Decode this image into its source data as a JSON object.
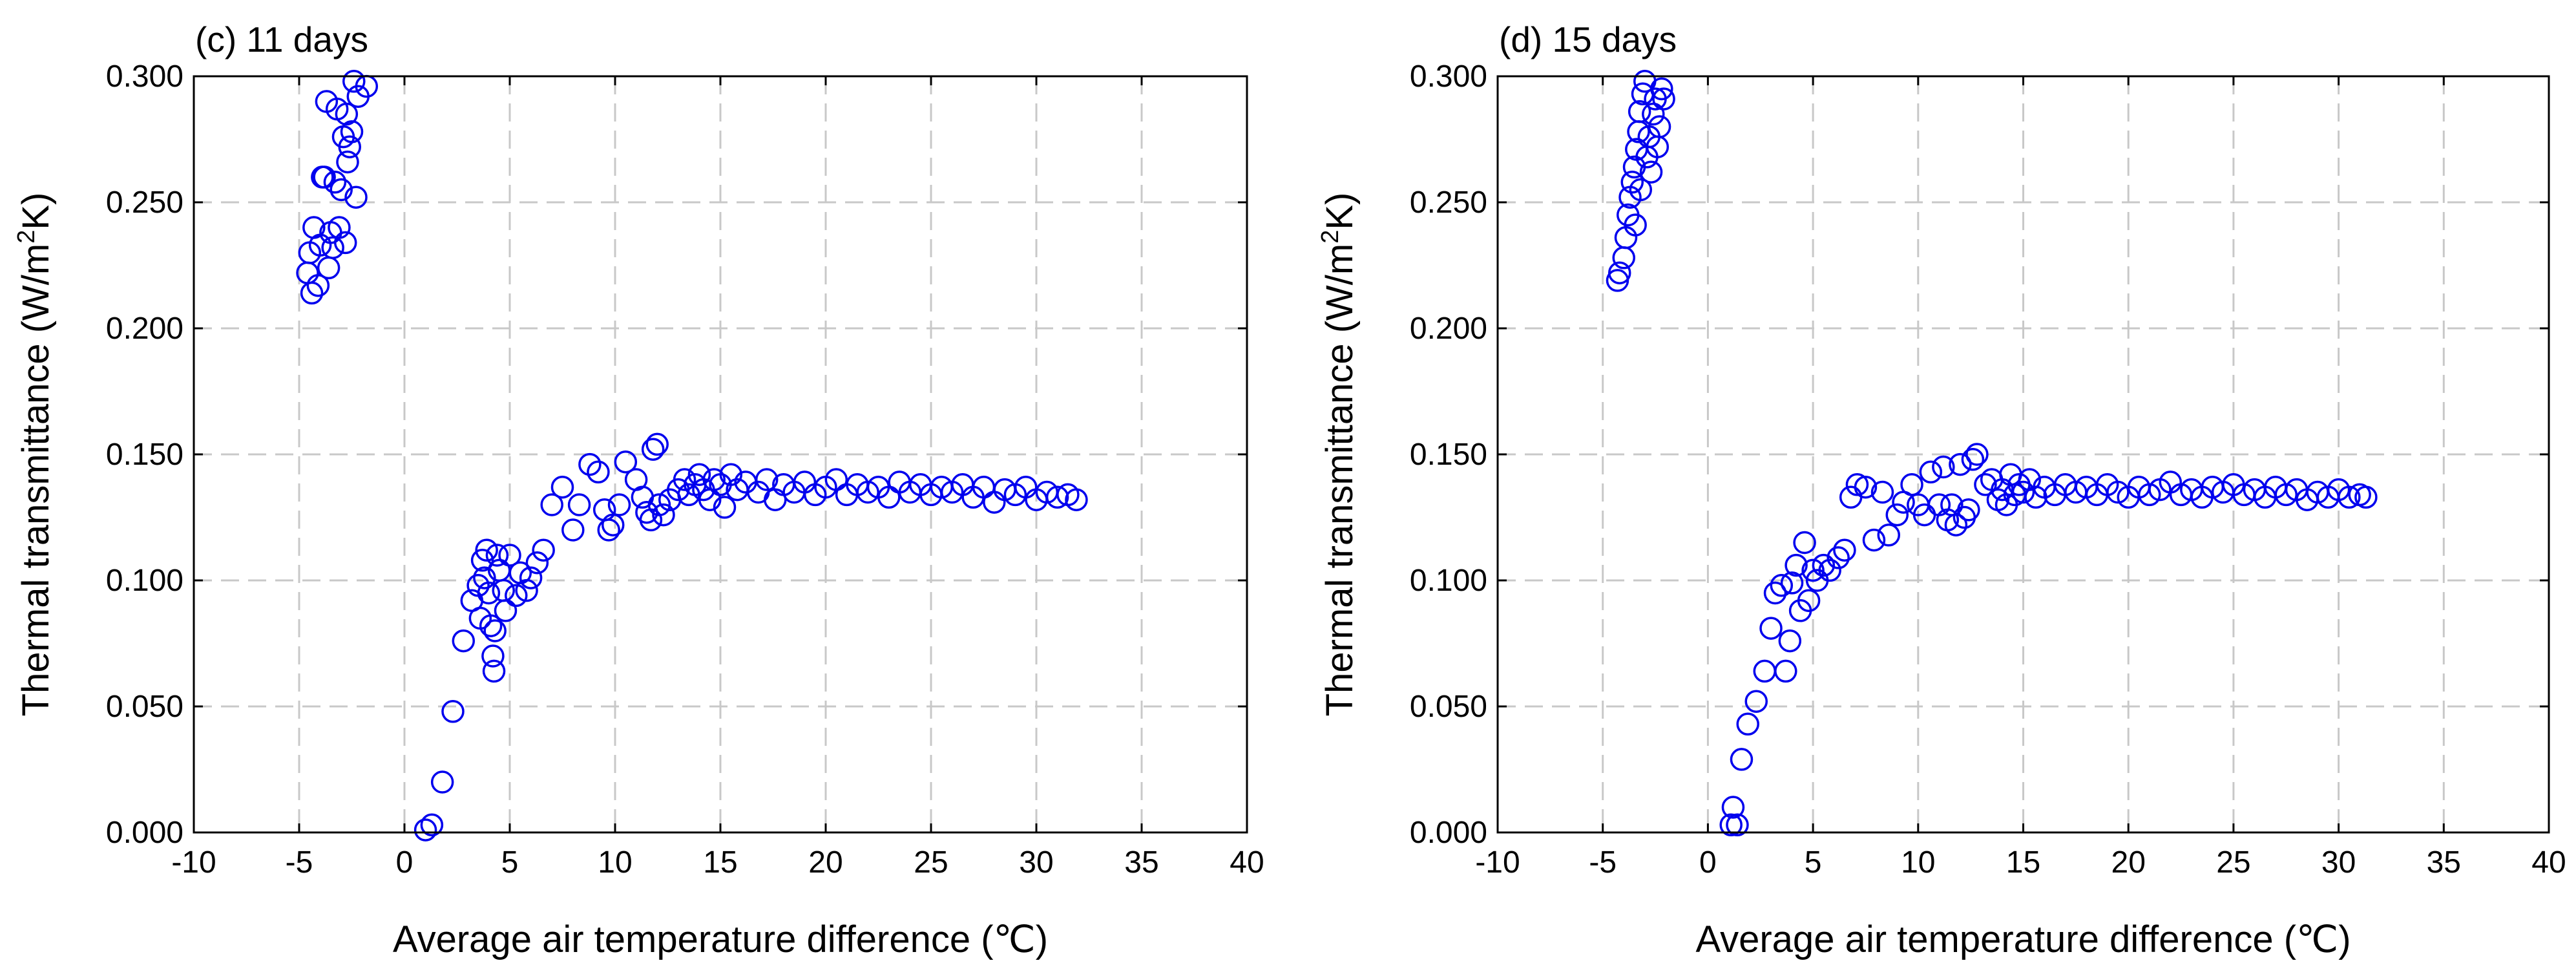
{
  "chart_data": [
    {
      "type": "scatter",
      "title": "(c) 11 days",
      "xlabel": "Average air temperature difference (℃)",
      "ylabel": "Thermal transmittance (W/m²K)",
      "xlim": [
        -10,
        40
      ],
      "ylim": [
        0,
        0.3
      ],
      "xticks": [
        "-10",
        "-5",
        "0",
        "5",
        "10",
        "15",
        "20",
        "25",
        "30",
        "35",
        "40"
      ],
      "yticks": [
        "0.000",
        "0.050",
        "0.100",
        "0.150",
        "0.200",
        "0.250",
        "0.300"
      ],
      "grid": true,
      "marker": "open-circle",
      "color": "#0000ee",
      "series": [
        {
          "name": "11 days",
          "points": [
            [
              -4.6,
              0.222
            ],
            [
              -4.5,
              0.23
            ],
            [
              -4.4,
              0.214
            ],
            [
              -4.3,
              0.24
            ],
            [
              -4.1,
              0.217
            ],
            [
              -4.0,
              0.233
            ],
            [
              -3.9,
              0.26
            ],
            [
              -3.8,
              0.26
            ],
            [
              -3.7,
              0.29
            ],
            [
              -3.6,
              0.224
            ],
            [
              -3.5,
              0.238
            ],
            [
              -3.4,
              0.232
            ],
            [
              -3.3,
              0.258
            ],
            [
              -3.2,
              0.287
            ],
            [
              -3.1,
              0.24
            ],
            [
              -3.0,
              0.255
            ],
            [
              -2.9,
              0.276
            ],
            [
              -2.8,
              0.234
            ],
            [
              -2.75,
              0.285
            ],
            [
              -2.7,
              0.266
            ],
            [
              -2.6,
              0.272
            ],
            [
              -2.5,
              0.278
            ],
            [
              -2.4,
              0.298
            ],
            [
              -2.3,
              0.252
            ],
            [
              -2.2,
              0.292
            ],
            [
              -1.8,
              0.296
            ],
            [
              1.0,
              0.001
            ],
            [
              1.3,
              0.003
            ],
            [
              1.8,
              0.02
            ],
            [
              2.3,
              0.048
            ],
            [
              2.8,
              0.076
            ],
            [
              3.2,
              0.092
            ],
            [
              3.5,
              0.098
            ],
            [
              3.6,
              0.085
            ],
            [
              3.7,
              0.108
            ],
            [
              3.8,
              0.101
            ],
            [
              3.9,
              0.112
            ],
            [
              4.0,
              0.095
            ],
            [
              4.1,
              0.082
            ],
            [
              4.2,
              0.07
            ],
            [
              4.25,
              0.064
            ],
            [
              4.3,
              0.08
            ],
            [
              4.4,
              0.11
            ],
            [
              4.5,
              0.104
            ],
            [
              4.7,
              0.096
            ],
            [
              4.8,
              0.088
            ],
            [
              5.0,
              0.11
            ],
            [
              5.3,
              0.094
            ],
            [
              5.5,
              0.103
            ],
            [
              5.8,
              0.096
            ],
            [
              6.0,
              0.101
            ],
            [
              6.3,
              0.107
            ],
            [
              6.6,
              0.112
            ],
            [
              7.0,
              0.13
            ],
            [
              7.5,
              0.137
            ],
            [
              8.0,
              0.12
            ],
            [
              8.3,
              0.13
            ],
            [
              8.8,
              0.146
            ],
            [
              9.2,
              0.143
            ],
            [
              9.5,
              0.128
            ],
            [
              9.7,
              0.12
            ],
            [
              9.9,
              0.122
            ],
            [
              10.2,
              0.13
            ],
            [
              10.5,
              0.147
            ],
            [
              11.0,
              0.14
            ],
            [
              11.3,
              0.133
            ],
            [
              11.5,
              0.127
            ],
            [
              11.7,
              0.124
            ],
            [
              11.8,
              0.152
            ],
            [
              12.0,
              0.154
            ],
            [
              12.1,
              0.13
            ],
            [
              12.3,
              0.126
            ],
            [
              12.6,
              0.132
            ],
            [
              13.0,
              0.136
            ],
            [
              13.3,
              0.14
            ],
            [
              13.5,
              0.134
            ],
            [
              13.8,
              0.138
            ],
            [
              14.0,
              0.142
            ],
            [
              14.2,
              0.136
            ],
            [
              14.5,
              0.132
            ],
            [
              14.7,
              0.14
            ],
            [
              15.0,
              0.138
            ],
            [
              15.2,
              0.129
            ],
            [
              15.5,
              0.142
            ],
            [
              15.8,
              0.136
            ],
            [
              16.2,
              0.139
            ],
            [
              16.8,
              0.135
            ],
            [
              17.2,
              0.14
            ],
            [
              17.6,
              0.132
            ],
            [
              18.0,
              0.138
            ],
            [
              18.5,
              0.135
            ],
            [
              19.0,
              0.139
            ],
            [
              19.5,
              0.134
            ],
            [
              20.0,
              0.137
            ],
            [
              20.5,
              0.14
            ],
            [
              21.0,
              0.134
            ],
            [
              21.5,
              0.138
            ],
            [
              22.0,
              0.135
            ],
            [
              22.5,
              0.137
            ],
            [
              23.0,
              0.133
            ],
            [
              23.5,
              0.139
            ],
            [
              24.0,
              0.135
            ],
            [
              24.5,
              0.138
            ],
            [
              25.0,
              0.134
            ],
            [
              25.5,
              0.137
            ],
            [
              26.0,
              0.135
            ],
            [
              26.5,
              0.138
            ],
            [
              27.0,
              0.133
            ],
            [
              27.5,
              0.137
            ],
            [
              28.0,
              0.131
            ],
            [
              28.5,
              0.136
            ],
            [
              29.0,
              0.134
            ],
            [
              29.5,
              0.137
            ],
            [
              30.0,
              0.132
            ],
            [
              30.5,
              0.135
            ],
            [
              31.0,
              0.133
            ],
            [
              31.5,
              0.134
            ],
            [
              31.9,
              0.132
            ]
          ]
        }
      ]
    },
    {
      "type": "scatter",
      "title": "(d) 15 days",
      "xlabel": "Average air temperature difference (℃)",
      "ylabel": "Thermal transmittance (W/m²K)",
      "xlim": [
        -10,
        40
      ],
      "ylim": [
        0,
        0.3
      ],
      "xticks": [
        "-10",
        "-5",
        "0",
        "5",
        "10",
        "15",
        "20",
        "25",
        "30",
        "35",
        "40"
      ],
      "yticks": [
        "0.000",
        "0.050",
        "0.100",
        "0.150",
        "0.200",
        "0.250",
        "0.300"
      ],
      "grid": true,
      "marker": "open-circle",
      "color": "#0000ee",
      "series": [
        {
          "name": "15 days",
          "points": [
            [
              -4.3,
              0.219
            ],
            [
              -4.2,
              0.222
            ],
            [
              -4.0,
              0.228
            ],
            [
              -3.9,
              0.236
            ],
            [
              -3.8,
              0.245
            ],
            [
              -3.7,
              0.252
            ],
            [
              -3.6,
              0.258
            ],
            [
              -3.5,
              0.264
            ],
            [
              -3.45,
              0.241
            ],
            [
              -3.4,
              0.271
            ],
            [
              -3.3,
              0.278
            ],
            [
              -3.25,
              0.286
            ],
            [
              -3.2,
              0.255
            ],
            [
              -3.1,
              0.293
            ],
            [
              -3.0,
              0.298
            ],
            [
              -2.9,
              0.268
            ],
            [
              -2.8,
              0.276
            ],
            [
              -2.7,
              0.262
            ],
            [
              -2.6,
              0.285
            ],
            [
              -2.5,
              0.291
            ],
            [
              -2.4,
              0.272
            ],
            [
              -2.3,
              0.28
            ],
            [
              -2.2,
              0.295
            ],
            [
              -2.1,
              0.291
            ],
            [
              1.1,
              0.003
            ],
            [
              1.2,
              0.01
            ],
            [
              1.4,
              0.003
            ],
            [
              1.6,
              0.029
            ],
            [
              1.9,
              0.043
            ],
            [
              2.3,
              0.052
            ],
            [
              2.7,
              0.064
            ],
            [
              3.0,
              0.081
            ],
            [
              3.2,
              0.095
            ],
            [
              3.5,
              0.098
            ],
            [
              3.7,
              0.064
            ],
            [
              3.9,
              0.076
            ],
            [
              4.0,
              0.099
            ],
            [
              4.2,
              0.106
            ],
            [
              4.4,
              0.088
            ],
            [
              4.6,
              0.115
            ],
            [
              4.8,
              0.092
            ],
            [
              5.0,
              0.104
            ],
            [
              5.2,
              0.1
            ],
            [
              5.5,
              0.106
            ],
            [
              5.8,
              0.104
            ],
            [
              6.2,
              0.109
            ],
            [
              6.5,
              0.112
            ],
            [
              6.8,
              0.133
            ],
            [
              7.1,
              0.138
            ],
            [
              7.5,
              0.137
            ],
            [
              7.9,
              0.116
            ],
            [
              8.3,
              0.135
            ],
            [
              8.6,
              0.118
            ],
            [
              9.0,
              0.126
            ],
            [
              9.3,
              0.131
            ],
            [
              9.7,
              0.138
            ],
            [
              10.0,
              0.13
            ],
            [
              10.3,
              0.126
            ],
            [
              10.6,
              0.143
            ],
            [
              11.0,
              0.13
            ],
            [
              11.2,
              0.145
            ],
            [
              11.4,
              0.124
            ],
            [
              11.6,
              0.13
            ],
            [
              11.8,
              0.122
            ],
            [
              12.0,
              0.146
            ],
            [
              12.2,
              0.125
            ],
            [
              12.4,
              0.128
            ],
            [
              12.6,
              0.148
            ],
            [
              12.8,
              0.15
            ],
            [
              13.2,
              0.138
            ],
            [
              13.5,
              0.14
            ],
            [
              13.8,
              0.132
            ],
            [
              14.0,
              0.136
            ],
            [
              14.2,
              0.13
            ],
            [
              14.4,
              0.142
            ],
            [
              14.6,
              0.134
            ],
            [
              14.8,
              0.138
            ],
            [
              15.0,
              0.135
            ],
            [
              15.3,
              0.14
            ],
            [
              15.6,
              0.133
            ],
            [
              16.0,
              0.137
            ],
            [
              16.5,
              0.134
            ],
            [
              17.0,
              0.138
            ],
            [
              17.5,
              0.135
            ],
            [
              18.0,
              0.137
            ],
            [
              18.5,
              0.134
            ],
            [
              19.0,
              0.138
            ],
            [
              19.5,
              0.135
            ],
            [
              20.0,
              0.133
            ],
            [
              20.5,
              0.137
            ],
            [
              21.0,
              0.134
            ],
            [
              21.5,
              0.136
            ],
            [
              22.0,
              0.139
            ],
            [
              22.5,
              0.134
            ],
            [
              23.0,
              0.136
            ],
            [
              23.5,
              0.133
            ],
            [
              24.0,
              0.137
            ],
            [
              24.5,
              0.135
            ],
            [
              25.0,
              0.138
            ],
            [
              25.5,
              0.134
            ],
            [
              26.0,
              0.136
            ],
            [
              26.5,
              0.133
            ],
            [
              27.0,
              0.137
            ],
            [
              27.5,
              0.134
            ],
            [
              28.0,
              0.136
            ],
            [
              28.5,
              0.132
            ],
            [
              29.0,
              0.135
            ],
            [
              29.5,
              0.133
            ],
            [
              30.0,
              0.136
            ],
            [
              30.5,
              0.133
            ],
            [
              31.0,
              0.134
            ],
            [
              31.3,
              0.133
            ]
          ]
        }
      ]
    }
  ]
}
